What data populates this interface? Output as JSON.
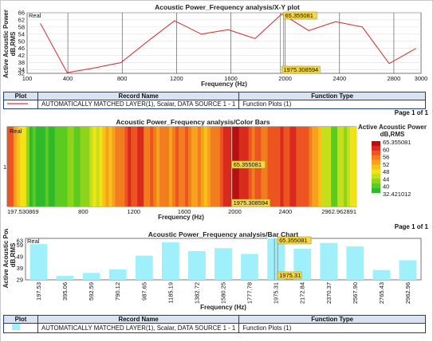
{
  "xy_plot": {
    "title": "Acoustic Power_Frequency analysis/X-Y plot",
    "ylabel": "Active Acoustic Power\ndB,RMS",
    "ylabel_line1": "Active Acoustic Power",
    "ylabel_line2": "dB,RMS",
    "xlabel": "Frequency (Hz)",
    "corner_label": "Real",
    "y_ticks": [
      "66",
      "62",
      "58",
      "54",
      "50",
      "46",
      "42",
      "38",
      "34",
      "32"
    ],
    "x_ticks": [
      "100",
      "400",
      "800",
      "1200",
      "1600",
      "2000",
      "2400",
      "2800",
      "3000"
    ],
    "marker_value": "65.355081",
    "marker_freq": "1975.308594",
    "line_color": "#d43a3a"
  },
  "legend1": {
    "headers": [
      "Plot",
      "Record Name",
      "Function Type"
    ],
    "row": {
      "record": "AUTOMATICALLY MATCHED LAYER(1), Scalar, DATA SOURCE 1 - 1",
      "function": "Function Plots (1)"
    },
    "page": "Page 1 of 1"
  },
  "colorbar_plot": {
    "title": "Acoustic Power_Frequency analysis/Color Bars",
    "corner_label": "Real",
    "y_tick": "1",
    "xlabel": "Frequency (Hz)",
    "x_ticks": [
      "197.530869",
      "800",
      "1200",
      "1600",
      "2000",
      "2400",
      "2962.962891"
    ],
    "marker_value": "65.355081",
    "marker_freq": "1975.308594",
    "scale_title_line1": "Active Acoustic Power",
    "scale_title_line2": "dB,RMS",
    "scale_labels": [
      "65.355081",
      "60",
      "56",
      "52",
      "48",
      "44",
      "40",
      "32.421012"
    ],
    "page": "Page 1 of 1"
  },
  "bar_plot": {
    "title": "Acoustic Power_Frequency analysis/Bar Chart",
    "ylabel_line1": "Active Acoustic Powe",
    "ylabel_line2": "dB,RMS",
    "corner_label": "Real",
    "y_ticks": [
      "63",
      "59",
      "49",
      "39",
      "29"
    ],
    "xlabel": "Frequency (Hz)",
    "marker_value": "65.355081",
    "marker_freq": "1975.31",
    "bar_color": "#9ff0fb"
  },
  "legend2": {
    "headers": [
      "Plot",
      "Record Name",
      "Function Type"
    ],
    "row": {
      "record": "AUTOMATICALLY MATCHED LAYER(1), Scalar, DATA SOURCE 1 - 1",
      "function": "Function Plots (1)"
    }
  },
  "chart_data": [
    {
      "type": "line",
      "title": "Acoustic Power_Frequency analysis/X-Y plot",
      "xlabel": "Frequency (Hz)",
      "ylabel": "Active Acoustic Power dB,RMS",
      "x": [
        197.53,
        395.06,
        592.59,
        790.12,
        987.65,
        1185.19,
        1382.72,
        1580.25,
        1777.78,
        1975.31,
        2172.84,
        2370.37,
        2567.9,
        2765.43,
        2962.96
      ],
      "values": [
        60,
        32.4,
        35,
        38,
        50,
        61.5,
        54,
        56.5,
        51.5,
        65.36,
        56,
        61,
        58,
        37.5,
        46
      ],
      "xlim": [
        100,
        3000
      ],
      "ylim": [
        32,
        66
      ],
      "grid": true
    },
    {
      "type": "heatmap",
      "title": "Acoustic Power_Frequency analysis/Color Bars",
      "xlabel": "Frequency (Hz)",
      "range": [
        32.421012,
        65.355081
      ],
      "xlim": [
        197.530869,
        2962.962891
      ]
    },
    {
      "type": "bar",
      "title": "Acoustic Power_Frequency analysis/Bar Chart",
      "xlabel": "Frequency (Hz)",
      "ylabel": "Active Acoustic Powe dB,RMS",
      "categories": [
        "197.53",
        "395.06",
        "592.59",
        "790.12",
        "987.65",
        "1185.19",
        "1382.72",
        "1580.25",
        "1777.78",
        "1975.31",
        "2172.84",
        "2370.37",
        "2567.90",
        "2765.43",
        "2962.96"
      ],
      "values": [
        60,
        32.4,
        35,
        38,
        50,
        61.5,
        54,
        56.5,
        51.5,
        65.36,
        56,
        61,
        58,
        37.5,
        46
      ],
      "ylim": [
        29,
        65
      ]
    }
  ]
}
